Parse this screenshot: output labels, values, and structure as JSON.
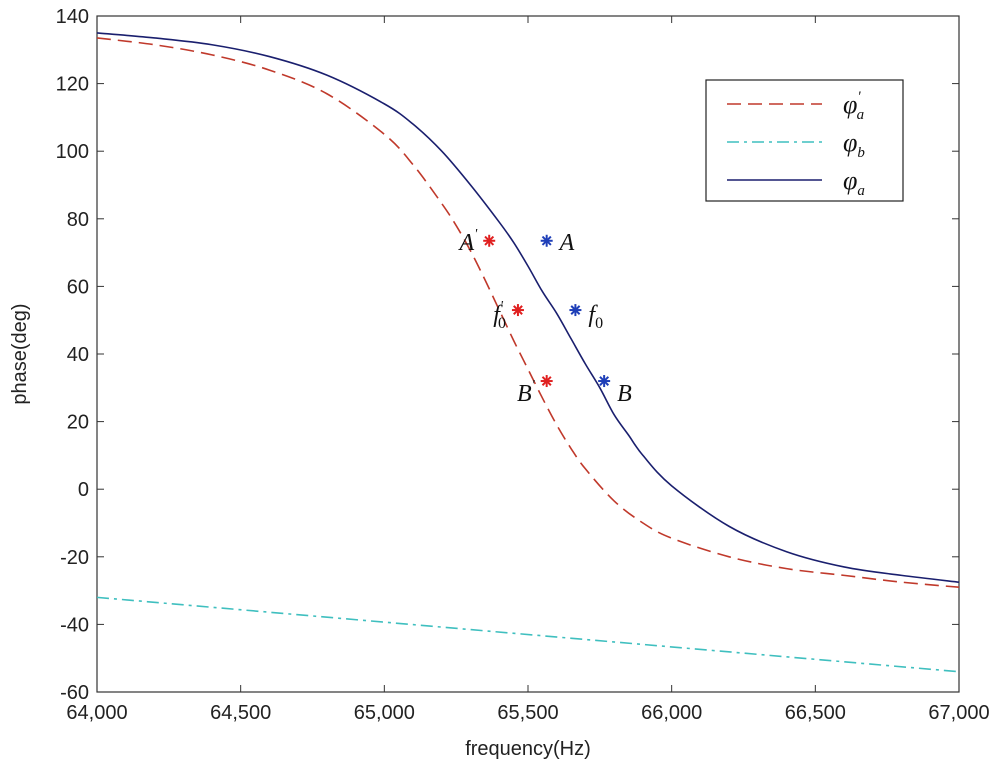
{
  "chart_data": {
    "type": "line",
    "xlabel": "frequency(Hz)",
    "ylabel": "phase(deg)",
    "xlim": [
      64000,
      67000
    ],
    "ylim": [
      -60,
      140
    ],
    "x_ticks": [
      64000,
      64500,
      65000,
      65500,
      66000,
      66500,
      67000
    ],
    "x_tick_labels": [
      "64,000",
      "64,500",
      "65,000",
      "65,500",
      "66,000",
      "66,500",
      "67,000"
    ],
    "y_ticks": [
      140,
      120,
      100,
      80,
      60,
      40,
      20,
      0,
      -20,
      -40,
      -60
    ],
    "y_tick_labels": [
      "140",
      "120",
      "100",
      "80",
      "60",
      "40",
      "20",
      "0",
      "-20",
      "-40",
      "-60"
    ],
    "grid": false,
    "legend_position": "top-right",
    "series": [
      {
        "key": "phi_a_prime",
        "legend_main": "φ",
        "legend_sub": "a",
        "legend_sup": "'",
        "color": "#c0392b",
        "style": "dashed",
        "x": [
          64000,
          64200,
          64400,
          64600,
          64800,
          65000,
          65100,
          65200,
          65250,
          65300,
          65350,
          65400,
          65450,
          65500,
          65550,
          65600,
          65650,
          65700,
          65800,
          65900,
          66000,
          66200,
          66400,
          66600,
          66800,
          67000
        ],
        "y": [
          133.5,
          131.5,
          128.5,
          124,
          117,
          105,
          96,
          84.5,
          78,
          70.5,
          62,
          53,
          44,
          35.5,
          27,
          19,
          12,
          6,
          -3.5,
          -10,
          -14.5,
          -20,
          -23.5,
          -25.5,
          -27.5,
          -29
        ]
      },
      {
        "key": "phi_b",
        "legend_main": "φ",
        "legend_sub": "b",
        "legend_sup": "",
        "color": "#3fbfbf",
        "style": "dashdot",
        "x": [
          64000,
          67000
        ],
        "y": [
          -32,
          -54
        ]
      },
      {
        "key": "phi_a",
        "legend_main": "φ",
        "legend_sub": "a",
        "legend_sup": "",
        "color": "#1a1f6e",
        "style": "solid",
        "x": [
          64000,
          64200,
          64400,
          64600,
          64800,
          65000,
          65100,
          65200,
          65300,
          65400,
          65450,
          65500,
          65550,
          65600,
          65650,
          65700,
          65750,
          65800,
          65850,
          65900,
          66000,
          66200,
          66400,
          66600,
          66800,
          67000
        ],
        "y": [
          135,
          133.5,
          131.5,
          128,
          122.5,
          114,
          108,
          100,
          90,
          79,
          73,
          66,
          58.5,
          52,
          44.5,
          37,
          30,
          22,
          16,
          10,
          1,
          -11,
          -18.5,
          -23,
          -25.5,
          -27.5
        ]
      }
    ],
    "markers": [
      {
        "series": "phi_a_prime",
        "x": 65365,
        "y": 73.5,
        "color": "#e02020",
        "label": "A",
        "label_sup": "'",
        "label_sub": "",
        "label_side": "left"
      },
      {
        "series": "phi_a_prime",
        "x": 65465,
        "y": 53,
        "color": "#e02020",
        "label": "f",
        "label_sup": "'",
        "label_sub": "0",
        "label_side": "left"
      },
      {
        "series": "phi_a_prime",
        "x": 65565,
        "y": 32,
        "color": "#e02020",
        "label": "B",
        "label_sup": "'",
        "label_sub": "",
        "label_side": "left"
      },
      {
        "series": "phi_a",
        "x": 65565,
        "y": 73.5,
        "color": "#1f3fb8",
        "label": "A",
        "label_sup": "",
        "label_sub": "",
        "label_side": "right"
      },
      {
        "series": "phi_a",
        "x": 65665,
        "y": 53,
        "color": "#1f3fb8",
        "label": "f",
        "label_sup": "",
        "label_sub": "0",
        "label_side": "right"
      },
      {
        "series": "phi_a",
        "x": 65765,
        "y": 32,
        "color": "#1f3fb8",
        "label": "B",
        "label_sup": "",
        "label_sub": "",
        "label_side": "right"
      }
    ]
  }
}
